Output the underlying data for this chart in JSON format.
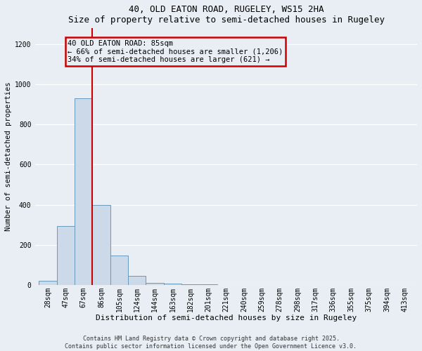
{
  "title_line1": "40, OLD EATON ROAD, RUGELEY, WS15 2HA",
  "title_line2": "Size of property relative to semi-detached houses in Rugeley",
  "xlabel": "Distribution of semi-detached houses by size in Rugeley",
  "ylabel": "Number of semi-detached properties",
  "bar_color": "#ccd9e8",
  "bar_edge_color": "#6699bb",
  "annotation_box_color": "#cc0000",
  "property_line_color": "#cc0000",
  "bin_labels": [
    "28sqm",
    "47sqm",
    "67sqm",
    "86sqm",
    "105sqm",
    "124sqm",
    "144sqm",
    "163sqm",
    "182sqm",
    "201sqm",
    "221sqm",
    "240sqm",
    "259sqm",
    "278sqm",
    "298sqm",
    "317sqm",
    "336sqm",
    "355sqm",
    "375sqm",
    "394sqm",
    "413sqm"
  ],
  "bin_values": [
    20,
    295,
    930,
    400,
    145,
    45,
    10,
    5,
    2,
    2,
    1,
    1,
    0,
    0,
    0,
    0,
    0,
    0,
    0,
    0,
    0
  ],
  "property_bin_index": 3,
  "annotation_title": "40 OLD EATON ROAD: 85sqm",
  "annotation_line1": "← 66% of semi-detached houses are smaller (1,206)",
  "annotation_line2": "34% of semi-detached houses are larger (621) →",
  "ylim": [
    0,
    1280
  ],
  "yticks": [
    0,
    200,
    400,
    600,
    800,
    1000,
    1200
  ],
  "footer_line1": "Contains HM Land Registry data © Crown copyright and database right 2025.",
  "footer_line2": "Contains public sector information licensed under the Open Government Licence v3.0.",
  "background_color": "#e8eef4",
  "grid_color": "#ffffff",
  "title_fontsize": 9.0,
  "xlabel_fontsize": 8.0,
  "ylabel_fontsize": 7.5,
  "tick_fontsize": 7.0,
  "annotation_fontsize": 7.5,
  "footer_fontsize": 6.0
}
